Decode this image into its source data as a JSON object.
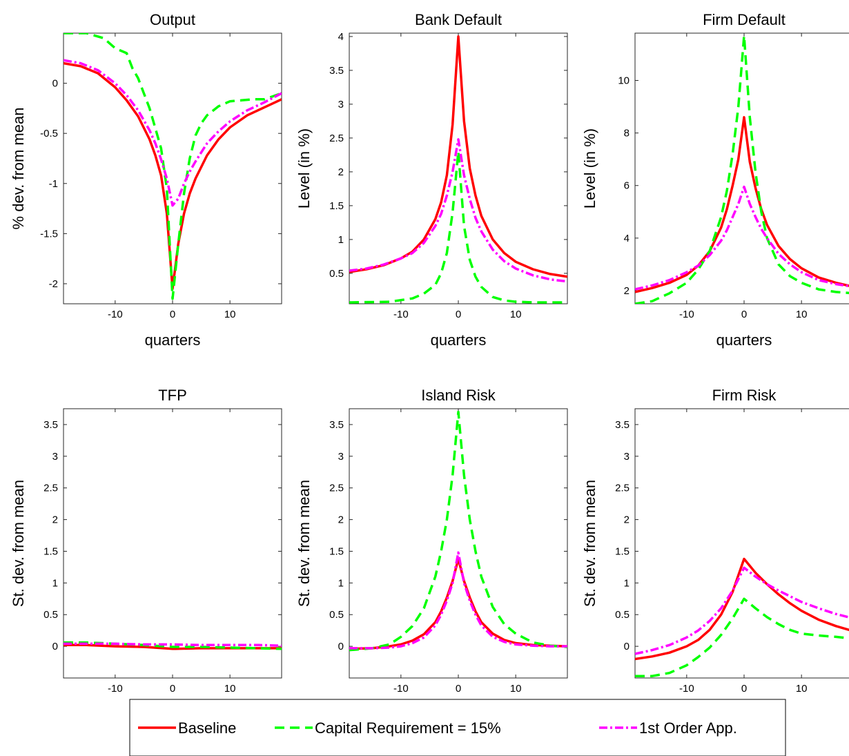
{
  "chart_data": [
    {
      "type": "line",
      "title": "Output",
      "xlabel": "quarters",
      "ylabel": "% dev. from mean",
      "xlim": [
        -19,
        19
      ],
      "ylim": [
        -2.2,
        0.5
      ],
      "xticks": [
        -10,
        0,
        10
      ],
      "yticks": [
        0,
        -0.5,
        -1,
        -1.5,
        -2
      ],
      "ytick_labels": [
        "0",
        "-0.5",
        "-1",
        "-1.5",
        "-2"
      ],
      "series": [
        {
          "name": "Baseline",
          "x": [
            -19,
            -16,
            -13,
            -10,
            -8,
            -6,
            -4,
            -3,
            -2,
            -1,
            0,
            1,
            2,
            3,
            4,
            6,
            8,
            10,
            13,
            16,
            19
          ],
          "y": [
            0.2,
            0.17,
            0.1,
            -0.04,
            -0.17,
            -0.33,
            -0.56,
            -0.72,
            -0.92,
            -1.3,
            -2.05,
            -1.6,
            -1.3,
            -1.1,
            -0.95,
            -0.72,
            -0.56,
            -0.44,
            -0.32,
            -0.24,
            -0.16
          ]
        },
        {
          "name": "Capital Requirement = 15%",
          "x": [
            -19,
            -15,
            -12,
            -10,
            -8,
            -7,
            -6,
            -5,
            -4,
            -3,
            -2,
            -1,
            0,
            1,
            2,
            3,
            4,
            5,
            6,
            8,
            10,
            12,
            14,
            16,
            18,
            19
          ],
          "y": [
            0.5,
            0.5,
            0.45,
            0.35,
            0.3,
            0.15,
            0.05,
            -0.1,
            -0.25,
            -0.45,
            -0.65,
            -1.05,
            -2.15,
            -1.6,
            -1.1,
            -0.75,
            -0.52,
            -0.4,
            -0.32,
            -0.23,
            -0.18,
            -0.17,
            -0.16,
            -0.16,
            -0.12,
            -0.1
          ]
        },
        {
          "name": "1st Order App.",
          "x": [
            -19,
            -16,
            -13,
            -10,
            -8,
            -6,
            -4,
            -3,
            -2,
            -1,
            0,
            1,
            2,
            3,
            4,
            6,
            8,
            10,
            13,
            16,
            19
          ],
          "y": [
            0.23,
            0.2,
            0.13,
            0.0,
            -0.12,
            -0.27,
            -0.47,
            -0.6,
            -0.76,
            -0.95,
            -1.22,
            -1.15,
            -1.0,
            -0.88,
            -0.78,
            -0.6,
            -0.48,
            -0.38,
            -0.27,
            -0.19,
            -0.1
          ]
        }
      ]
    },
    {
      "type": "line",
      "title": "Bank Default",
      "xlabel": "quarters",
      "ylabel": "Level (in %)",
      "xlim": [
        -19,
        19
      ],
      "ylim": [
        0.05,
        4.05
      ],
      "xticks": [
        -10,
        0,
        10
      ],
      "yticks": [
        4,
        3.5,
        3,
        2.5,
        2,
        1.5,
        1,
        0.5
      ],
      "ytick_labels": [
        "4",
        "3.5",
        "3",
        "2.5",
        "2",
        "1.5",
        "1",
        "0.5"
      ],
      "series": [
        {
          "name": "Baseline",
          "x": [
            -19,
            -16,
            -13,
            -10,
            -8,
            -6,
            -4,
            -3,
            -2,
            -1,
            0,
            1,
            2,
            3,
            4,
            6,
            8,
            10,
            13,
            16,
            19
          ],
          "y": [
            0.52,
            0.56,
            0.62,
            0.72,
            0.82,
            1.0,
            1.3,
            1.55,
            1.95,
            2.7,
            4.0,
            2.75,
            2.05,
            1.65,
            1.35,
            1.0,
            0.8,
            0.67,
            0.56,
            0.49,
            0.45
          ]
        },
        {
          "name": "Capital Requirement = 15%",
          "x": [
            -19,
            -12,
            -8,
            -6,
            -4,
            -3,
            -2,
            -1,
            0,
            1,
            2,
            3,
            4,
            6,
            8,
            10,
            13,
            19
          ],
          "y": [
            0.07,
            0.08,
            0.13,
            0.2,
            0.33,
            0.5,
            0.8,
            1.4,
            2.3,
            1.2,
            0.7,
            0.45,
            0.3,
            0.15,
            0.1,
            0.08,
            0.07,
            0.07
          ]
        },
        {
          "name": "1st Order App.",
          "x": [
            -19,
            -16,
            -13,
            -10,
            -8,
            -6,
            -4,
            -3,
            -2,
            -1,
            0,
            1,
            2,
            3,
            4,
            6,
            8,
            10,
            13,
            16,
            19
          ],
          "y": [
            0.54,
            0.57,
            0.63,
            0.72,
            0.8,
            0.95,
            1.2,
            1.38,
            1.65,
            2.0,
            2.48,
            1.95,
            1.6,
            1.32,
            1.12,
            0.85,
            0.68,
            0.57,
            0.47,
            0.41,
            0.38
          ]
        }
      ]
    },
    {
      "type": "line",
      "title": "Firm Default",
      "xlabel": "quarters",
      "ylabel": "Level (in %)",
      "xlim": [
        -19,
        19
      ],
      "ylim": [
        1.5,
        11.8
      ],
      "xticks": [
        -10,
        0,
        10
      ],
      "yticks": [
        10,
        8,
        6,
        4,
        2
      ],
      "ytick_labels": [
        "10",
        "8",
        "6",
        "4",
        "2"
      ],
      "series": [
        {
          "name": "Baseline",
          "x": [
            -19,
            -16,
            -13,
            -10,
            -8,
            -6,
            -4,
            -3,
            -2,
            -1,
            0,
            1,
            2,
            3,
            4,
            6,
            8,
            10,
            13,
            16,
            19
          ],
          "y": [
            1.95,
            2.1,
            2.3,
            2.6,
            2.95,
            3.5,
            4.4,
            5.1,
            6.0,
            7.0,
            8.6,
            6.9,
            5.9,
            5.1,
            4.5,
            3.7,
            3.2,
            2.85,
            2.5,
            2.3,
            2.15
          ]
        },
        {
          "name": "Capital Requirement = 15%",
          "x": [
            -19,
            -16,
            -13,
            -10,
            -8,
            -6,
            -4,
            -3,
            -2,
            -1,
            0,
            1,
            2,
            3,
            4,
            6,
            8,
            10,
            13,
            16,
            19
          ],
          "y": [
            1.5,
            1.6,
            1.9,
            2.3,
            2.8,
            3.5,
            4.8,
            5.8,
            7.2,
            9.0,
            11.7,
            8.6,
            6.5,
            5.0,
            4.0,
            3.0,
            2.55,
            2.3,
            2.05,
            1.95,
            1.9
          ]
        },
        {
          "name": "1st Order App.",
          "x": [
            -19,
            -16,
            -13,
            -10,
            -8,
            -6,
            -4,
            -3,
            -2,
            -1,
            0,
            1,
            2,
            3,
            4,
            6,
            8,
            10,
            13,
            16,
            19
          ],
          "y": [
            2.05,
            2.2,
            2.4,
            2.7,
            2.95,
            3.35,
            3.9,
            4.3,
            4.8,
            5.3,
            5.95,
            5.3,
            4.8,
            4.35,
            4.0,
            3.4,
            3.0,
            2.7,
            2.4,
            2.25,
            2.15
          ]
        }
      ]
    },
    {
      "type": "line",
      "title": "TFP",
      "xlabel": "",
      "ylabel": "St. dev. from mean",
      "xlim": [
        -19,
        19
      ],
      "ylim": [
        -0.5,
        3.75
      ],
      "xticks": [
        -10,
        0,
        10
      ],
      "yticks": [
        3.5,
        3,
        2.5,
        2,
        1.5,
        1,
        0.5,
        0
      ],
      "ytick_labels": [
        "3.5",
        "3",
        "2.5",
        "2",
        "1.5",
        "1",
        "0.5",
        "0"
      ],
      "series": [
        {
          "name": "Baseline",
          "x": [
            -19,
            -15,
            -10,
            -5,
            0,
            5,
            10,
            15,
            19
          ],
          "y": [
            0.02,
            0.02,
            0.0,
            -0.01,
            -0.04,
            -0.03,
            -0.03,
            -0.03,
            -0.03
          ]
        },
        {
          "name": "Capital Requirement = 15%",
          "x": [
            -19,
            -15,
            -10,
            -5,
            0,
            5,
            10,
            15,
            19
          ],
          "y": [
            0.06,
            0.06,
            0.04,
            0.02,
            -0.01,
            -0.01,
            -0.02,
            -0.03,
            -0.04
          ]
        },
        {
          "name": "1st Order App.",
          "x": [
            -19,
            -15,
            -10,
            -5,
            0,
            5,
            10,
            15,
            19
          ],
          "y": [
            0.04,
            0.04,
            0.04,
            0.03,
            0.03,
            0.02,
            0.02,
            0.02,
            0.01
          ]
        }
      ]
    },
    {
      "type": "line",
      "title": "Island Risk",
      "xlabel": "",
      "ylabel": "St. dev. from mean",
      "xlim": [
        -19,
        19
      ],
      "ylim": [
        -0.5,
        3.75
      ],
      "xticks": [
        -10,
        0,
        10
      ],
      "yticks": [
        3.5,
        3,
        2.5,
        2,
        1.5,
        1,
        0.5,
        0
      ],
      "ytick_labels": [
        "3.5",
        "3",
        "2.5",
        "2",
        "1.5",
        "1",
        "0.5",
        "0"
      ],
      "series": [
        {
          "name": "Baseline",
          "x": [
            -19,
            -15,
            -12,
            -10,
            -8,
            -6,
            -4,
            -3,
            -2,
            -1,
            0,
            1,
            2,
            3,
            4,
            6,
            8,
            10,
            13,
            16,
            19
          ],
          "y": [
            -0.04,
            -0.03,
            0.0,
            0.03,
            0.09,
            0.19,
            0.38,
            0.55,
            0.77,
            1.03,
            1.38,
            1.03,
            0.77,
            0.55,
            0.38,
            0.2,
            0.1,
            0.05,
            0.02,
            0.01,
            0.0
          ]
        },
        {
          "name": "Capital Requirement = 15%",
          "x": [
            -19,
            -15,
            -12,
            -10,
            -8,
            -6,
            -4,
            -3,
            -2,
            -1,
            0,
            1,
            2,
            3,
            4,
            6,
            8,
            10,
            13,
            16,
            19
          ],
          "y": [
            -0.06,
            -0.03,
            0.03,
            0.15,
            0.32,
            0.6,
            1.1,
            1.5,
            2.0,
            2.7,
            3.7,
            2.7,
            2.0,
            1.5,
            1.1,
            0.62,
            0.35,
            0.2,
            0.06,
            0.01,
            -0.01
          ]
        },
        {
          "name": "1st Order App.",
          "x": [
            -19,
            -15,
            -12,
            -10,
            -8,
            -6,
            -4,
            -3,
            -2,
            -1,
            0,
            1,
            2,
            3,
            4,
            6,
            8,
            10,
            13,
            16,
            19
          ],
          "y": [
            -0.03,
            -0.03,
            -0.02,
            0.0,
            0.05,
            0.14,
            0.33,
            0.5,
            0.72,
            1.0,
            1.48,
            1.0,
            0.72,
            0.5,
            0.33,
            0.15,
            0.07,
            0.03,
            0.01,
            0.0,
            0.0
          ]
        }
      ]
    },
    {
      "type": "line",
      "title": "Firm Risk",
      "xlabel": "",
      "ylabel": "St. dev. from mean",
      "xlim": [
        -19,
        19
      ],
      "ylim": [
        -0.5,
        3.75
      ],
      "xticks": [
        -10,
        0,
        10
      ],
      "yticks": [
        3.5,
        3,
        2.5,
        2,
        1.5,
        1,
        0.5,
        0
      ],
      "ytick_labels": [
        "3.5",
        "3",
        "2.5",
        "2",
        "1.5",
        "1",
        "0.5",
        "0"
      ],
      "series": [
        {
          "name": "Baseline",
          "x": [
            -19,
            -16,
            -13,
            -10,
            -8,
            -6,
            -4,
            -2,
            0,
            2,
            4,
            6,
            8,
            10,
            13,
            16,
            19
          ],
          "y": [
            -0.2,
            -0.16,
            -0.1,
            0.0,
            0.1,
            0.26,
            0.5,
            0.86,
            1.38,
            1.16,
            0.98,
            0.82,
            0.68,
            0.56,
            0.42,
            0.32,
            0.24
          ]
        },
        {
          "name": "Capital Requirement = 15%",
          "x": [
            -19,
            -16,
            -13,
            -10,
            -8,
            -6,
            -4,
            -2,
            0,
            2,
            4,
            6,
            8,
            10,
            13,
            16,
            19
          ],
          "y": [
            -0.47,
            -0.47,
            -0.42,
            -0.3,
            -0.17,
            -0.02,
            0.18,
            0.44,
            0.75,
            0.6,
            0.46,
            0.35,
            0.26,
            0.2,
            0.17,
            0.15,
            0.12
          ]
        },
        {
          "name": "1st Order App.",
          "x": [
            -19,
            -16,
            -13,
            -10,
            -8,
            -6,
            -4,
            -2,
            0,
            2,
            4,
            6,
            8,
            10,
            13,
            16,
            19
          ],
          "y": [
            -0.12,
            -0.06,
            0.02,
            0.14,
            0.25,
            0.4,
            0.6,
            0.88,
            1.24,
            1.1,
            0.98,
            0.88,
            0.79,
            0.7,
            0.6,
            0.51,
            0.44
          ]
        }
      ]
    }
  ],
  "legend": {
    "placement": "bottom-center",
    "entries": [
      {
        "label": "Baseline",
        "color": "#ff0000",
        "style": "solid"
      },
      {
        "label": "Capital Requirement = 15%",
        "color": "#00ff00",
        "style": "dashed"
      },
      {
        "label": "1st Order App.",
        "color": "#ff00ff",
        "style": "dashdot"
      }
    ]
  },
  "series_styles": [
    {
      "color": "#ff0000",
      "dash": ""
    },
    {
      "color": "#00ff00",
      "dash": "14 8"
    },
    {
      "color": "#ff00ff",
      "dash": "12 4 3 4"
    }
  ]
}
